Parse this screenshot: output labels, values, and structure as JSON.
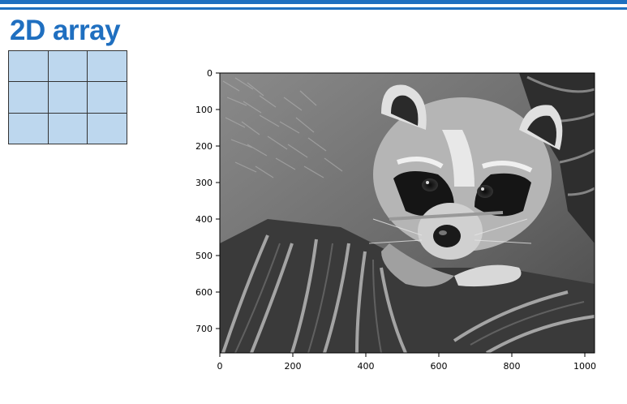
{
  "slide": {
    "title": "2D array",
    "accent_color": "#1f6fc0",
    "cell_color": "#bdd7ee"
  },
  "array_diagram": {
    "rows": 3,
    "cols": 3
  },
  "image_plot": {
    "subject": "grayscale raccoon face photo",
    "x_ticks": [
      "0",
      "200",
      "400",
      "600",
      "800",
      "1000"
    ],
    "y_ticks": [
      "0",
      "100",
      "200",
      "300",
      "400",
      "500",
      "600",
      "700"
    ]
  }
}
